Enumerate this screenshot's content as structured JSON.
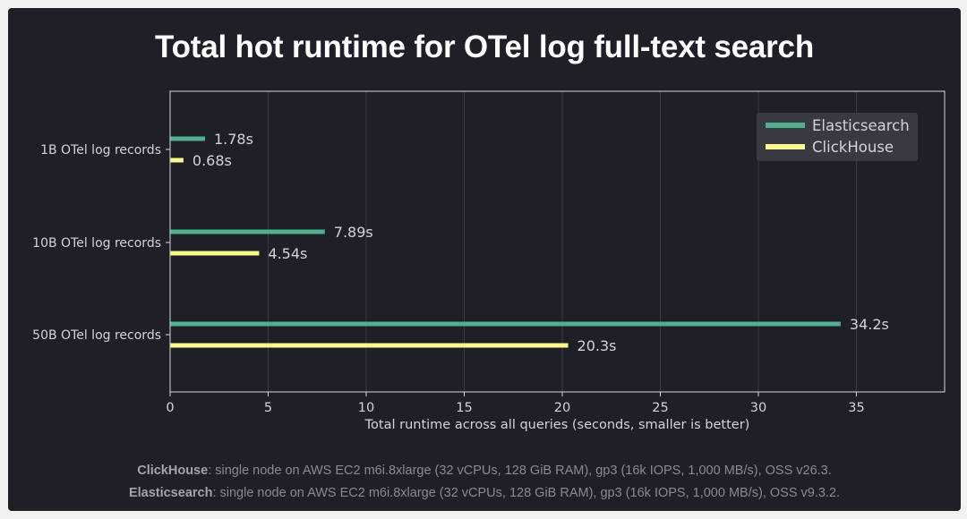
{
  "chart_data": {
    "type": "bar",
    "orientation": "horizontal",
    "title": "Total hot runtime for OTel log full-text search",
    "categories": [
      "1B OTel log records",
      "10B OTel log records",
      "50B OTel log records"
    ],
    "series": [
      {
        "name": "Elasticsearch",
        "values": [
          1.78,
          7.89,
          34.2
        ],
        "labels": [
          "1.78s",
          "7.89s",
          "34.2s"
        ],
        "color": "#53b08f"
      },
      {
        "name": "ClickHouse",
        "values": [
          0.68,
          4.54,
          20.3
        ],
        "labels": [
          "0.68s",
          "4.54s",
          "20.3s"
        ],
        "color": "#f9f98e"
      }
    ],
    "xlabel": "Total runtime across all queries (seconds, smaller is better)",
    "ylabel": "",
    "xlim": [
      0,
      39.5
    ],
    "xticks": [
      0,
      5,
      10,
      15,
      20,
      25,
      30,
      35
    ],
    "grid": "vertical",
    "legend": "top-right"
  },
  "footnotes": [
    {
      "name": "ClickHouse",
      "text": ": single node on AWS EC2 m6i.8xlarge (32 vCPUs, 128 GiB RAM), gp3 (16k IOPS, 1,000 MB/s), OSS v26.3."
    },
    {
      "name": "Elasticsearch",
      "text": ": single node on AWS EC2 m6i.8xlarge (32 vCPUs, 128 GiB RAM), gp3 (16k IOPS, 1,000 MB/s), OSS v9.3.2."
    }
  ],
  "colors": {
    "background": "#1f1f28",
    "frame": "#d9d9d9",
    "text": "#d4d4d4",
    "grid": "#3a3a45"
  }
}
